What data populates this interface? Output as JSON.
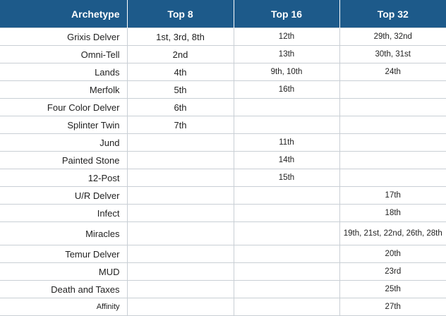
{
  "headers": [
    "Archetype",
    "Top 8",
    "Top 16",
    "Top 32"
  ],
  "rows": [
    [
      "Grixis Delver",
      "1st, 3rd, 8th",
      "12th",
      "29th, 32nd"
    ],
    [
      "Omni-Tell",
      "2nd",
      "13th",
      "30th, 31st"
    ],
    [
      "Lands",
      "4th",
      "9th, 10th",
      "24th"
    ],
    [
      "Merfolk",
      "5th",
      "16th",
      ""
    ],
    [
      "Four Color Delver",
      "6th",
      "",
      ""
    ],
    [
      "Splinter Twin",
      "7th",
      "",
      ""
    ],
    [
      "Jund",
      "",
      "11th",
      ""
    ],
    [
      "Painted Stone",
      "",
      "14th",
      ""
    ],
    [
      "12-Post",
      "",
      "15th",
      ""
    ],
    [
      "U/R Delver",
      "",
      "",
      "17th"
    ],
    [
      "Infect",
      "",
      "",
      "18th"
    ],
    [
      "Miracles",
      "",
      "",
      "19th, 21st, 22nd, 26th, 28th"
    ],
    [
      "Temur Delver",
      "",
      "",
      "20th"
    ],
    [
      "MUD",
      "",
      "",
      "23rd"
    ],
    [
      "Death and Taxes",
      "",
      "",
      "25th"
    ],
    [
      "Affinity",
      "",
      "",
      "27th"
    ]
  ]
}
